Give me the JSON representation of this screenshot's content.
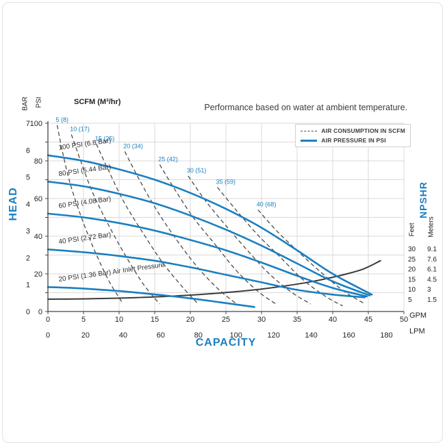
{
  "header": {
    "title": "Performance based on water at ambient temperature.",
    "scfm_axis_title": "SCFM (M³/hr)"
  },
  "legend": {
    "items": [
      {
        "label": "AIR CONSUMPTION IN SCFM",
        "line_style": "dashed",
        "color": "#4a4a4a"
      },
      {
        "label": "AIR PRESSURE IN PSI",
        "line_style": "solid",
        "color": "#1a7fc1"
      }
    ]
  },
  "axes": {
    "left": {
      "title": "HEAD",
      "units": [
        {
          "label": "BAR",
          "ticks": [
            7,
            6,
            5,
            4,
            3,
            2,
            1,
            0
          ]
        },
        {
          "label": "PSI",
          "ticks": [
            100,
            80,
            60,
            40,
            20,
            0
          ]
        }
      ]
    },
    "bottom": {
      "title": "CAPACITY",
      "units": [
        {
          "label": "GPM",
          "ticks": [
            0,
            5,
            10,
            15,
            20,
            25,
            30,
            35,
            40,
            45,
            50
          ]
        },
        {
          "label": "LPM",
          "ticks": [
            0,
            20,
            40,
            60,
            80,
            100,
            120,
            140,
            160,
            180
          ]
        }
      ]
    },
    "right": {
      "title": "NPSHR",
      "units": [
        {
          "label": "Feet",
          "ticks": [
            30,
            25,
            20,
            15,
            10,
            5
          ]
        },
        {
          "label": "Meters",
          "ticks": [
            9.1,
            7.6,
            6.1,
            4.5,
            3,
            1.5
          ]
        }
      ]
    }
  },
  "colors": {
    "accent_blue": "#1a7fc1",
    "dashed_gray": "#4a4a4a",
    "npshr_dark": "#3a3a3a",
    "grid": "#d9d9d9",
    "axis": "#444444",
    "text": "#3c3c3c"
  },
  "chart_data": {
    "type": "line",
    "title": "Performance based on water at ambient temperature.",
    "xlabel": "CAPACITY",
    "ylabel": "HEAD",
    "x_units": [
      "GPM",
      "LPM"
    ],
    "y_units": [
      "BAR",
      "PSI"
    ],
    "right_axis": {
      "label": "NPSHR",
      "units": [
        "Feet",
        "Meters"
      ],
      "feet_ticks": [
        30,
        25,
        20,
        15,
        10,
        5
      ],
      "meters_ticks": [
        9.1,
        7.6,
        6.1,
        4.5,
        3,
        1.5
      ]
    },
    "xlim_gpm": [
      0,
      50
    ],
    "ylim_psi": [
      0,
      100
    ],
    "grid": true,
    "x_grid_step_gpm": 5,
    "y_grid_step_psi": 10,
    "legend_position": "top-right",
    "air_pressure_curves": [
      {
        "label": "100 PSI (6.8 Bar)",
        "points_gpm_psi": [
          [
            0,
            83
          ],
          [
            5,
            80
          ],
          [
            10,
            75.5
          ],
          [
            15,
            70
          ],
          [
            20,
            63
          ],
          [
            25,
            54.5
          ],
          [
            30,
            44.5
          ],
          [
            35,
            32.5
          ],
          [
            40,
            20
          ],
          [
            45.5,
            9
          ]
        ]
      },
      {
        "label": "80 PSI (5.44 Bar)",
        "points_gpm_psi": [
          [
            0,
            69
          ],
          [
            5,
            66.5
          ],
          [
            10,
            62.5
          ],
          [
            15,
            57.5
          ],
          [
            20,
            51
          ],
          [
            25,
            43.5
          ],
          [
            30,
            35
          ],
          [
            35,
            25.5
          ],
          [
            40,
            16
          ],
          [
            45.2,
            8.5
          ]
        ]
      },
      {
        "label": "60 PSI (4.08 Bar)",
        "points_gpm_psi": [
          [
            0,
            52
          ],
          [
            5,
            50
          ],
          [
            10,
            47
          ],
          [
            15,
            43
          ],
          [
            20,
            38
          ],
          [
            25,
            32.5
          ],
          [
            30,
            26
          ],
          [
            35,
            19
          ],
          [
            40,
            12.5
          ],
          [
            44.8,
            8
          ]
        ]
      },
      {
        "label": "40 PSI (2.72 Bar)",
        "points_gpm_psi": [
          [
            0,
            33
          ],
          [
            5,
            31.5
          ],
          [
            10,
            29.5
          ],
          [
            15,
            27
          ],
          [
            20,
            23.5
          ],
          [
            25,
            19.5
          ],
          [
            30,
            15.5
          ],
          [
            35,
            11.5
          ],
          [
            40,
            9
          ],
          [
            44.5,
            7.5
          ]
        ]
      },
      {
        "label": "20 PSI (1.36 Bar) Air Inlet Pressure",
        "points_gpm_psi": [
          [
            0,
            13
          ],
          [
            4,
            12.4
          ],
          [
            8,
            11.4
          ],
          [
            12,
            10.2
          ],
          [
            16,
            8.7
          ],
          [
            20,
            7
          ],
          [
            24,
            5
          ],
          [
            27,
            3.4
          ],
          [
            29,
            2.4
          ]
        ]
      }
    ],
    "air_consumption_curves": [
      {
        "label": "5 (8)",
        "points_gpm_psi": [
          [
            1.3,
            99
          ],
          [
            2.1,
            84
          ],
          [
            3.2,
            67
          ],
          [
            4.8,
            49
          ],
          [
            6.6,
            32
          ],
          [
            8.6,
            16
          ],
          [
            10.4,
            5
          ]
        ]
      },
      {
        "label": "10 (17)",
        "points_gpm_psi": [
          [
            3.3,
            94
          ],
          [
            4.6,
            80
          ],
          [
            6.3,
            63
          ],
          [
            8.5,
            46
          ],
          [
            11,
            29
          ],
          [
            13.5,
            14
          ],
          [
            15.7,
            4
          ]
        ]
      },
      {
        "label": "15 (25)",
        "points_gpm_psi": [
          [
            6.8,
            89
          ],
          [
            8.5,
            75
          ],
          [
            10.7,
            58
          ],
          [
            13.3,
            42
          ],
          [
            16.1,
            26
          ],
          [
            18.9,
            13
          ],
          [
            21.1,
            4
          ]
        ]
      },
      {
        "label": "20 (34)",
        "points_gpm_psi": [
          [
            10.8,
            85
          ],
          [
            12.7,
            71
          ],
          [
            15.1,
            55
          ],
          [
            17.9,
            39
          ],
          [
            20.9,
            24
          ],
          [
            23.9,
            12
          ],
          [
            26.5,
            4
          ]
        ]
      },
      {
        "label": "25 (42)",
        "points_gpm_psi": [
          [
            15.7,
            78
          ],
          [
            17.8,
            65
          ],
          [
            20.4,
            50
          ],
          [
            23.4,
            36
          ],
          [
            26.4,
            22
          ],
          [
            29.4,
            11
          ],
          [
            32,
            4
          ]
        ]
      },
      {
        "label": "30 (51)",
        "points_gpm_psi": [
          [
            19.7,
            72
          ],
          [
            22.1,
            59
          ],
          [
            24.9,
            46
          ],
          [
            27.9,
            33
          ],
          [
            31.1,
            20
          ],
          [
            34.3,
            10
          ],
          [
            36.9,
            4
          ]
        ]
      },
      {
        "label": "35 (59)",
        "points_gpm_psi": [
          [
            23.8,
            66
          ],
          [
            26.4,
            54
          ],
          [
            29.4,
            41
          ],
          [
            32.6,
            29
          ],
          [
            35.8,
            17
          ],
          [
            39,
            8
          ],
          [
            41.4,
            3
          ]
        ]
      },
      {
        "label": "40 (68)",
        "points_gpm_psi": [
          [
            29.5,
            54
          ],
          [
            32.1,
            43
          ],
          [
            35.1,
            32
          ],
          [
            38.3,
            21
          ],
          [
            41.5,
            11
          ],
          [
            44.3,
            4.5
          ]
        ]
      }
    ],
    "npshr_curve": {
      "label": "NPSHR",
      "units": "Feet",
      "points_gpm_feet": [
        [
          0,
          5
        ],
        [
          6,
          5.2
        ],
        [
          12,
          5.7
        ],
        [
          18,
          6.6
        ],
        [
          24,
          8
        ],
        [
          30,
          10
        ],
        [
          36,
          13
        ],
        [
          40,
          15.8
        ],
        [
          44,
          19.5
        ],
        [
          46.7,
          24
        ]
      ]
    }
  }
}
